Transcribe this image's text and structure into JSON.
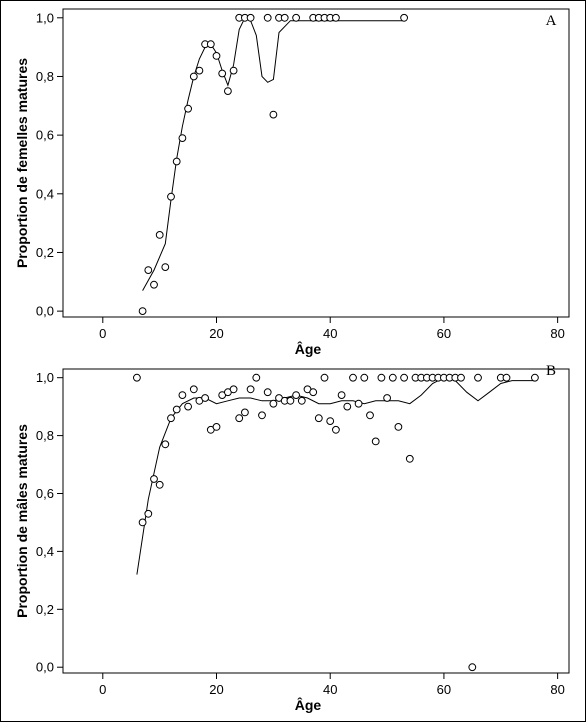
{
  "chart_data": [
    {
      "type": "scatter",
      "panel_label": "A",
      "xlabel": "Âge",
      "ylabel": "Proportion de femelles matures",
      "xlim": [
        -7,
        82
      ],
      "ylim": [
        -0.02,
        1.03
      ],
      "x_ticks": [
        0,
        20,
        40,
        60,
        80
      ],
      "x_tick_labels": [
        "0",
        "20",
        "40",
        "60",
        "80"
      ],
      "y_ticks": [
        0.0,
        0.2,
        0.4,
        0.6,
        0.8,
        1.0
      ],
      "y_tick_labels": [
        "0,0",
        "0,2",
        "0,4",
        "0,6",
        "0,8",
        "1,0"
      ],
      "grid": false,
      "points": {
        "x": [
          7,
          8,
          9,
          10,
          11,
          12,
          13,
          14,
          15,
          16,
          17,
          18,
          19,
          20,
          21,
          22,
          23,
          24,
          25,
          26,
          29,
          30,
          31,
          32,
          34,
          37,
          38,
          39,
          40,
          41,
          53
        ],
        "y": [
          0.0,
          0.14,
          0.09,
          0.26,
          0.15,
          0.39,
          0.51,
          0.59,
          0.69,
          0.8,
          0.82,
          0.91,
          0.91,
          0.87,
          0.81,
          0.75,
          0.82,
          1.0,
          1.0,
          1.0,
          1.0,
          0.67,
          1.0,
          1.0,
          1.0,
          1.0,
          1.0,
          1.0,
          1.0,
          1.0,
          1.0
        ]
      },
      "smooth_line": {
        "x": [
          7,
          9,
          11,
          12,
          13,
          14,
          15,
          16,
          17,
          18,
          19,
          20,
          21,
          22,
          23,
          24,
          25,
          26,
          27,
          28,
          29,
          30,
          31,
          33,
          40,
          53
        ],
        "y": [
          0.07,
          0.14,
          0.23,
          0.38,
          0.52,
          0.63,
          0.72,
          0.8,
          0.86,
          0.9,
          0.91,
          0.88,
          0.82,
          0.77,
          0.84,
          0.96,
          1.0,
          0.99,
          0.94,
          0.8,
          0.78,
          0.79,
          0.95,
          0.99,
          0.99,
          0.99
        ]
      }
    },
    {
      "type": "scatter",
      "panel_label": "B",
      "xlabel": "Âge",
      "ylabel": "Proportion de mâles matures",
      "xlim": [
        -7,
        82
      ],
      "ylim": [
        -0.02,
        1.03
      ],
      "x_ticks": [
        0,
        20,
        40,
        60,
        80
      ],
      "x_tick_labels": [
        "0",
        "20",
        "40",
        "60",
        "80"
      ],
      "y_ticks": [
        0.0,
        0.2,
        0.4,
        0.6,
        0.8,
        1.0
      ],
      "y_tick_labels": [
        "0,0",
        "0,2",
        "0,4",
        "0,6",
        "0,8",
        "1,0"
      ],
      "grid": false,
      "points": {
        "x": [
          6,
          7,
          8,
          9,
          10,
          11,
          12,
          13,
          14,
          15,
          16,
          17,
          18,
          19,
          20,
          21,
          22,
          23,
          24,
          25,
          26,
          27,
          28,
          29,
          30,
          31,
          32,
          33,
          34,
          35,
          36,
          37,
          38,
          39,
          40,
          41,
          42,
          43,
          44,
          45,
          46,
          47,
          48,
          49,
          50,
          51,
          52,
          53,
          54,
          55,
          56,
          57,
          58,
          59,
          60,
          61,
          62,
          63,
          65,
          66,
          70,
          71,
          76
        ],
        "y": [
          1.0,
          0.5,
          0.53,
          0.65,
          0.63,
          0.77,
          0.86,
          0.89,
          0.94,
          0.9,
          0.96,
          0.92,
          0.93,
          0.82,
          0.83,
          0.94,
          0.95,
          0.96,
          0.86,
          0.88,
          0.96,
          1.0,
          0.87,
          0.95,
          0.91,
          0.93,
          0.92,
          0.92,
          0.94,
          0.92,
          0.96,
          0.95,
          0.86,
          1.0,
          0.85,
          0.82,
          0.94,
          0.9,
          1.0,
          0.91,
          1.0,
          0.87,
          0.78,
          1.0,
          0.93,
          1.0,
          0.83,
          1.0,
          0.72,
          1.0,
          1.0,
          1.0,
          1.0,
          1.0,
          1.0,
          1.0,
          1.0,
          1.0,
          0.0,
          1.0,
          1.0,
          1.0,
          1.0
        ]
      },
      "smooth_line": {
        "x": [
          6,
          8,
          10,
          12,
          14,
          16,
          18,
          20,
          22,
          24,
          26,
          28,
          30,
          32,
          34,
          36,
          38,
          40,
          42,
          44,
          46,
          48,
          50,
          52,
          54,
          56,
          58,
          60,
          62,
          64,
          66,
          68,
          70,
          72,
          76
        ],
        "y": [
          0.32,
          0.58,
          0.76,
          0.86,
          0.91,
          0.93,
          0.93,
          0.91,
          0.92,
          0.93,
          0.93,
          0.92,
          0.92,
          0.93,
          0.94,
          0.93,
          0.91,
          0.91,
          0.92,
          0.92,
          0.91,
          0.92,
          0.92,
          0.92,
          0.91,
          0.94,
          0.98,
          1.0,
          0.99,
          0.95,
          0.92,
          0.95,
          0.98,
          0.99,
          0.99
        ]
      }
    }
  ]
}
